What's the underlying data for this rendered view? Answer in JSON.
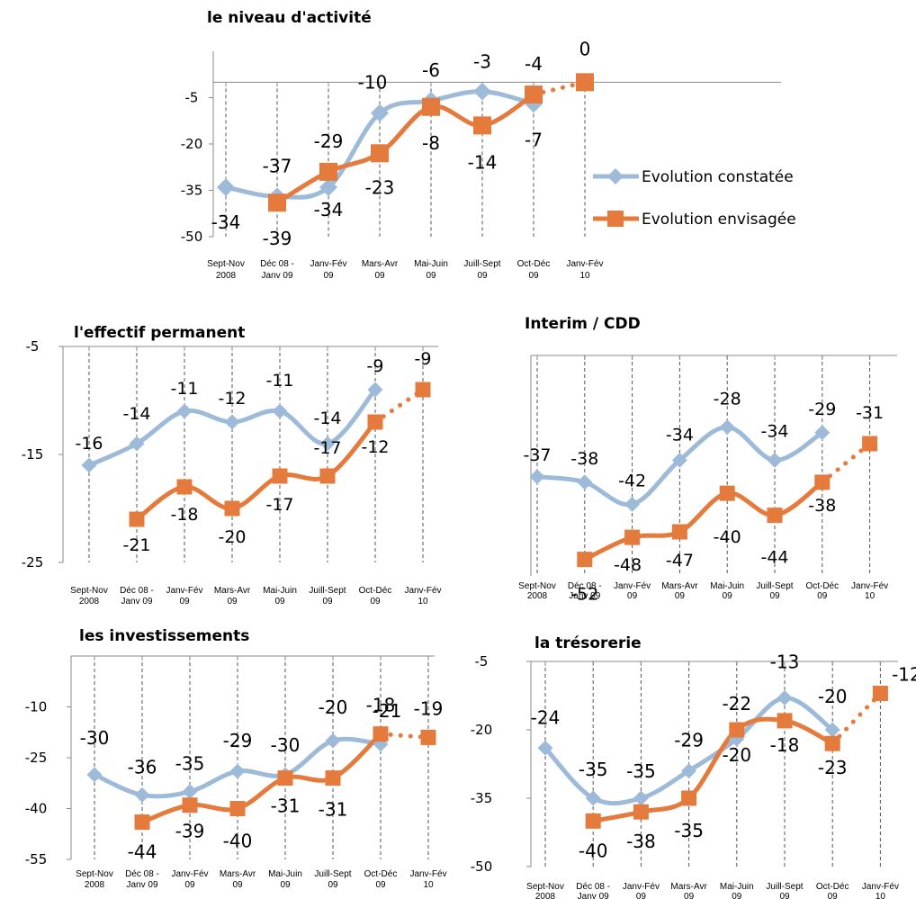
{
  "colors": {
    "constatee": "#9dbbd9",
    "envisagee": "#e47a3c",
    "axis": "#8a8a8a",
    "dash": "#555555"
  },
  "categories": [
    [
      "Sept-Nov",
      "2008"
    ],
    [
      "Déc 08 -",
      "Janv 09"
    ],
    [
      "Janv-Fév",
      "09"
    ],
    [
      "Mars-Avr",
      "09"
    ],
    [
      "Mai-Juin",
      "09"
    ],
    [
      "Juill-Sept",
      "09"
    ],
    [
      "Oct-Déc",
      "09"
    ],
    [
      "Janv-Fév",
      "10"
    ]
  ],
  "legend": {
    "constatee": "Evolution constatée",
    "envisagee": "Evolution envisagée"
  },
  "chart_data": [
    {
      "type": "line",
      "title": "le niveau d'activité",
      "ylim": [
        -50,
        10
      ],
      "yticks": [
        -5,
        -20,
        -35,
        -50
      ],
      "legend_position": "right",
      "series": [
        {
          "name": "Evolution constatée",
          "values": [
            -34,
            -37,
            -34,
            -10,
            -6,
            -3,
            -7,
            null
          ]
        },
        {
          "name": "Evolution envisagée",
          "values": [
            null,
            -39,
            -29,
            -23,
            -8,
            -14,
            -4,
            0
          ]
        }
      ],
      "labels_constatee": [
        "-34",
        "-37",
        "-34",
        "-10",
        "-6",
        "-3",
        "-7",
        ""
      ],
      "labels_envisagee": [
        "",
        "-39",
        "-29",
        "-23",
        "-8",
        "-14",
        "-4",
        "0"
      ]
    },
    {
      "type": "line",
      "title": "l'effectif permanent",
      "ylim": [
        -25,
        -5
      ],
      "yticks": [
        -5,
        -15,
        -25
      ],
      "series": [
        {
          "name": "Evolution constatée",
          "values": [
            -16,
            -14,
            -11,
            -12,
            -11,
            -14,
            -9,
            null
          ]
        },
        {
          "name": "Evolution envisagée",
          "values": [
            null,
            -21,
            -18,
            -20,
            -17,
            -17,
            -12,
            -9
          ]
        }
      ],
      "labels_constatee": [
        "-16",
        "-14",
        "-11",
        "-12",
        "-11",
        "-14",
        "-9",
        ""
      ],
      "labels_envisagee": [
        "",
        "-21",
        "-18",
        "-20",
        "-17",
        "-17",
        "-12",
        "-9"
      ]
    },
    {
      "type": "line",
      "title": "Interim / CDD",
      "ylim": [
        -55,
        -15
      ],
      "yticks": [],
      "series": [
        {
          "name": "Evolution constatée",
          "values": [
            -37,
            -38,
            -42,
            -34,
            -28,
            -34,
            -29,
            null
          ]
        },
        {
          "name": "Evolution envisagée",
          "values": [
            null,
            -52,
            -48,
            -47,
            -40,
            -44,
            -38,
            -31
          ]
        }
      ],
      "labels_constatee": [
        "-37",
        "-38",
        "-42",
        "-34",
        "-28",
        "-34",
        "-29",
        ""
      ],
      "labels_envisagee": [
        "",
        "-52",
        "-48",
        "-47",
        "-40",
        "-44",
        "-38",
        "-31"
      ]
    },
    {
      "type": "line",
      "title": "les investissements",
      "ylim": [
        -55,
        5
      ],
      "yticks": [
        -10,
        -25,
        -40,
        -55
      ],
      "series": [
        {
          "name": "Evolution constatée",
          "values": [
            -30,
            -36,
            -35,
            -29,
            -30,
            -20,
            -21,
            null
          ]
        },
        {
          "name": "Evolution envisagée",
          "values": [
            null,
            -44,
            -39,
            -40,
            -31,
            -31,
            -18,
            -19
          ]
        }
      ],
      "labels_constatee": [
        "-30",
        "-36",
        "-35",
        "-29",
        "-30",
        "-20",
        "-21",
        ""
      ],
      "labels_envisagee": [
        "",
        "-44",
        "-39",
        "-40",
        "-31",
        "-31",
        "-18",
        "-19"
      ]
    },
    {
      "type": "line",
      "title": "la trésorerie",
      "ylim": [
        -50,
        -5
      ],
      "yticks": [
        -5,
        -20,
        -35,
        -50
      ],
      "series": [
        {
          "name": "Evolution constatée",
          "values": [
            -24,
            -35,
            -35,
            -29,
            -22,
            -13,
            -20,
            null
          ]
        },
        {
          "name": "Evolution envisagée",
          "values": [
            null,
            -40,
            -38,
            -35,
            -20,
            -18,
            -23,
            -12
          ]
        }
      ],
      "labels_constatee": [
        "-24",
        "-35",
        "-35",
        "-29",
        "-22",
        "-13",
        "-20",
        ""
      ],
      "labels_envisagee": [
        "",
        "-40",
        "-38",
        "-35",
        "-20",
        "-18",
        "-23",
        "-12"
      ]
    }
  ]
}
